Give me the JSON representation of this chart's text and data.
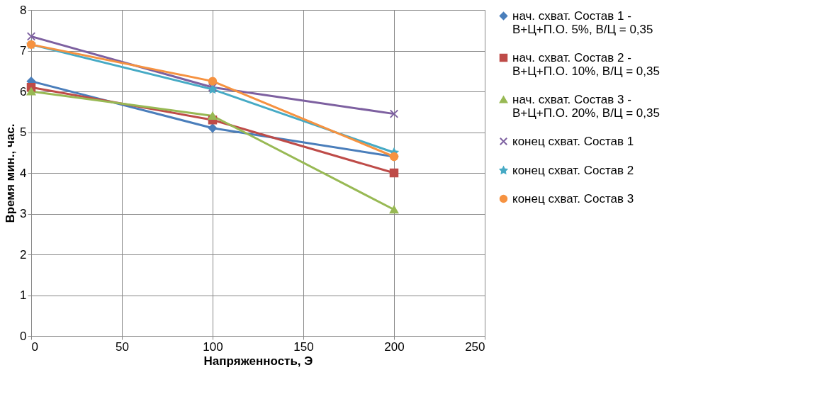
{
  "chart_data": {
    "type": "line",
    "xlabel": "Напряженность, Э",
    "ylabel": "Время мин., час.",
    "x": [
      0,
      100,
      200
    ],
    "xlim": [
      0,
      250
    ],
    "xticks": [
      0,
      50,
      100,
      150,
      200,
      250
    ],
    "ylim": [
      0,
      8
    ],
    "yticks": [
      0,
      1,
      2,
      3,
      4,
      5,
      6,
      7,
      8
    ],
    "grid": true,
    "legend": "right",
    "series": [
      {
        "name": "нач. схват. Состав 1 - В+Ц+П.О. 5%, В/Ц = 0,35",
        "color": "#4a7ebb",
        "marker": "diamond",
        "values": [
          6.25,
          5.1,
          4.4
        ]
      },
      {
        "name": "нач. схват. Состав 2 - В+Ц+П.О. 10%, В/Ц = 0,35",
        "color": "#be4b48",
        "marker": "square",
        "values": [
          6.1,
          5.3,
          4.0
        ]
      },
      {
        "name": "нач. схват. Состав 3 - В+Ц+П.О. 20%, В/Ц = 0,35",
        "color": "#98b954",
        "marker": "triangle",
        "values": [
          6.0,
          5.4,
          3.1
        ]
      },
      {
        "name": "конец  схват. Состав 1",
        "color": "#7d60a0",
        "marker": "cross",
        "values": [
          7.35,
          6.1,
          5.45
        ]
      },
      {
        "name": "конец  схват. Состав 2",
        "color": "#46aac5",
        "marker": "star",
        "values": [
          7.15,
          6.05,
          4.5
        ]
      },
      {
        "name": "конец  схват. Состав 3",
        "color": "#f69240",
        "marker": "circle",
        "values": [
          7.15,
          6.25,
          4.4
        ]
      }
    ]
  }
}
